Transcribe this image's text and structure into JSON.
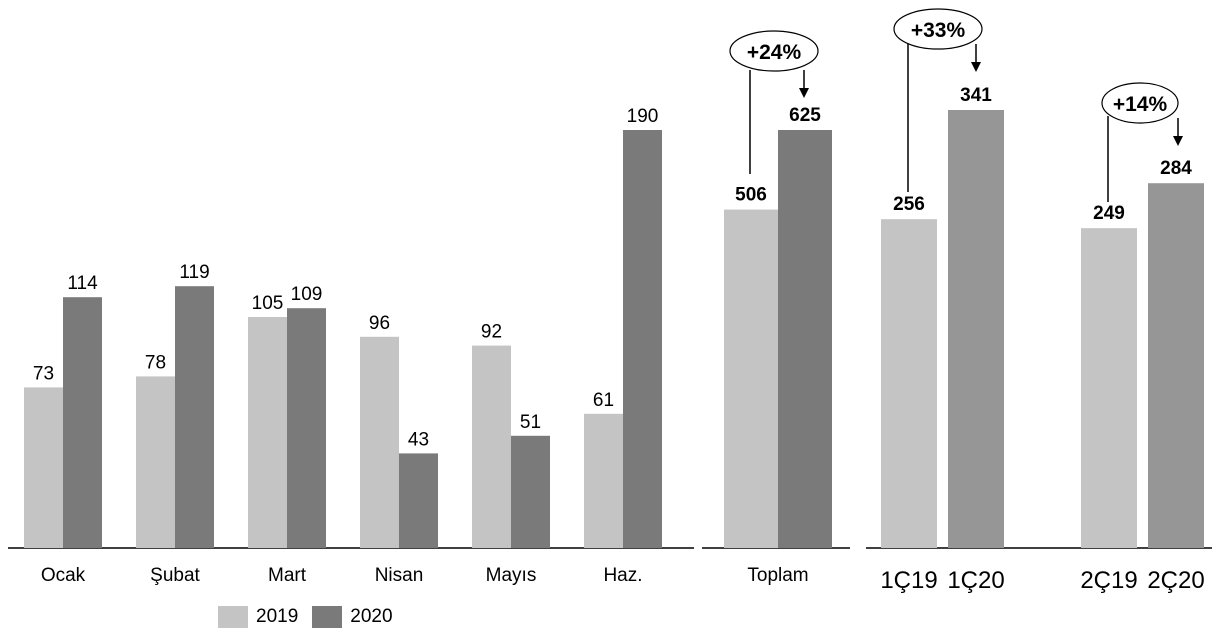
{
  "colors": {
    "y2019": "#c4c4c4",
    "y2020": "#7a7a7a",
    "q2019": "#c4c4c4",
    "q2020": "#969696",
    "axis": "#000000"
  },
  "chart_data": [
    {
      "type": "bar",
      "categories": [
        "Ocak",
        "Şubat",
        "Mart",
        "Nisan",
        "Mayıs",
        "Haz."
      ],
      "series": [
        {
          "name": "2019",
          "values": [
            73,
            78,
            105,
            96,
            92,
            61
          ]
        },
        {
          "name": "2020",
          "values": [
            114,
            119,
            109,
            43,
            51,
            190
          ]
        }
      ],
      "value_labels_bold": false
    },
    {
      "type": "bar",
      "categories": [
        "Toplam"
      ],
      "series": [
        {
          "name": "2019",
          "values": [
            506
          ]
        },
        {
          "name": "2020",
          "values": [
            625
          ]
        }
      ],
      "annotation": "+24%",
      "value_labels_bold": true
    },
    {
      "type": "bar",
      "categories": [
        "1Ç19",
        "1Ç20"
      ],
      "values": [
        256,
        341
      ],
      "annotation": "+33%",
      "value_labels_bold": true
    },
    {
      "type": "bar",
      "categories": [
        "2Ç19",
        "2Ç20"
      ],
      "values": [
        249,
        284
      ],
      "annotation": "+14%",
      "value_labels_bold": true
    }
  ],
  "legend": [
    {
      "label": "2019",
      "color": "#c4c4c4"
    },
    {
      "label": "2020",
      "color": "#7a7a7a"
    }
  ]
}
